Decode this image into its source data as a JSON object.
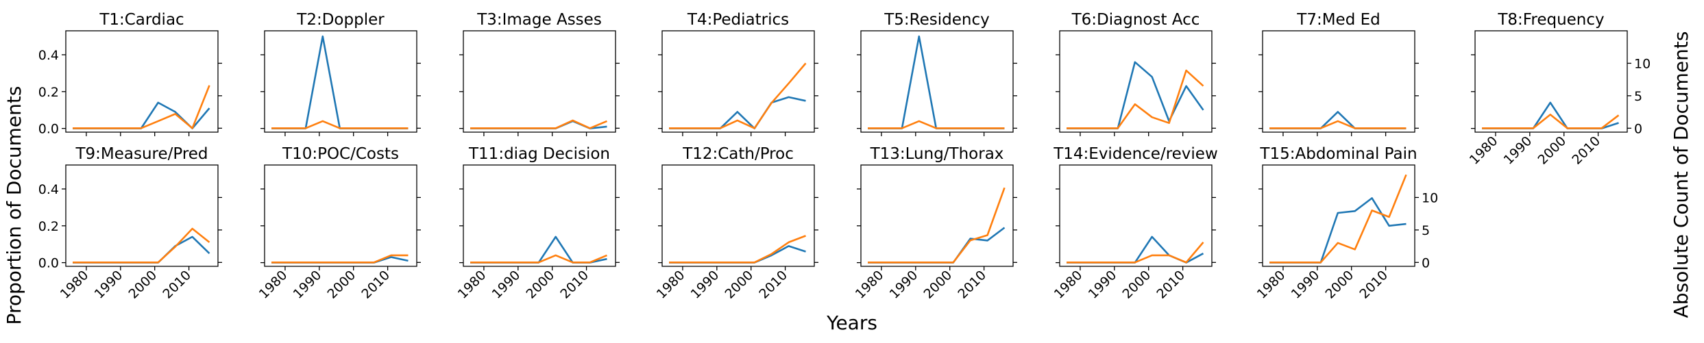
{
  "figure": {
    "ylabel_left": "Proportion of Documents",
    "ylabel_right": "Absolute Count of Documents",
    "xlabel": "Years"
  },
  "colors": {
    "proportion": "#1f77b4",
    "count": "#ff7f0e"
  },
  "chart_data": [
    {
      "type": "line",
      "title": "T1:Cardiac",
      "x": [
        1976,
        1981,
        1986,
        1991,
        1996,
        2001,
        2006,
        2011,
        2016
      ],
      "series": [
        {
          "values": [
            0,
            0,
            0,
            0,
            0,
            0.14,
            0.09,
            0,
            0.11
          ]
        },
        {
          "values": [
            0,
            0,
            0,
            0,
            0,
            1.1,
            2.2,
            0,
            6.6
          ]
        }
      ],
      "ylim": [
        -0.02,
        0.53
      ],
      "y2lim": [
        -0.6,
        15
      ]
    },
    {
      "type": "line",
      "title": "T2:Doppler",
      "x": [
        1976,
        1981,
        1986,
        1991,
        1996,
        2001,
        2006,
        2011,
        2016
      ],
      "series": [
        {
          "values": [
            0,
            0,
            0,
            0.5,
            0,
            0,
            0,
            0,
            0
          ]
        },
        {
          "values": [
            0,
            0,
            0,
            1.1,
            0,
            0,
            0,
            0,
            0
          ]
        }
      ],
      "ylim": [
        -0.02,
        0.53
      ],
      "y2lim": [
        -0.6,
        15
      ]
    },
    {
      "type": "line",
      "title": "T3:Image Asses",
      "x": [
        1976,
        1981,
        1986,
        1991,
        1996,
        2001,
        2006,
        2011,
        2016
      ],
      "series": [
        {
          "values": [
            0,
            0,
            0,
            0,
            0,
            0,
            0.04,
            0,
            0.01
          ]
        },
        {
          "values": [
            0,
            0,
            0,
            0,
            0,
            0,
            1.2,
            0,
            1.1
          ]
        }
      ],
      "ylim": [
        -0.02,
        0.53
      ],
      "y2lim": [
        -0.6,
        15
      ]
    },
    {
      "type": "line",
      "title": "T4:Pediatrics",
      "x": [
        1976,
        1981,
        1986,
        1991,
        1996,
        2001,
        2006,
        2011,
        2016
      ],
      "series": [
        {
          "values": [
            0,
            0,
            0,
            0,
            0.09,
            0,
            0.14,
            0.17,
            0.15
          ]
        },
        {
          "values": [
            0,
            0,
            0,
            0,
            1.2,
            0,
            3.9,
            6.9,
            10
          ]
        }
      ],
      "ylim": [
        -0.02,
        0.53
      ],
      "y2lim": [
        -0.6,
        15
      ]
    },
    {
      "type": "line",
      "title": "T5:Residency",
      "x": [
        1976,
        1981,
        1986,
        1991,
        1996,
        2001,
        2006,
        2011,
        2016
      ],
      "series": [
        {
          "values": [
            0,
            0,
            0,
            0.5,
            0,
            0,
            0,
            0,
            0
          ]
        },
        {
          "values": [
            0,
            0,
            0,
            1.1,
            0,
            0,
            0,
            0,
            0
          ]
        }
      ],
      "ylim": [
        -0.02,
        0.53
      ],
      "y2lim": [
        -0.6,
        15
      ]
    },
    {
      "type": "line",
      "title": "T6:Diagnost Acc",
      "x": [
        1976,
        1981,
        1986,
        1991,
        1996,
        2001,
        2006,
        2011,
        2016
      ],
      "series": [
        {
          "values": [
            0,
            0,
            0,
            0,
            0.36,
            0.28,
            0.04,
            0.23,
            0.1
          ]
        },
        {
          "values": [
            0,
            0,
            0,
            0,
            3.7,
            1.7,
            0.8,
            8.9,
            6.5
          ]
        }
      ],
      "ylim": [
        -0.02,
        0.53
      ],
      "y2lim": [
        -0.6,
        15
      ]
    },
    {
      "type": "line",
      "title": "T7:Med Ed",
      "x": [
        1976,
        1981,
        1986,
        1991,
        1996,
        2001,
        2006,
        2011,
        2016
      ],
      "series": [
        {
          "values": [
            0,
            0,
            0,
            0,
            0.09,
            0,
            0,
            0,
            0
          ]
        },
        {
          "values": [
            0,
            0,
            0,
            0,
            1.1,
            0,
            0,
            0,
            0
          ]
        }
      ],
      "ylim": [
        -0.02,
        0.53
      ],
      "y2lim": [
        -0.6,
        15
      ]
    },
    {
      "type": "line",
      "title": "T8:Frequency",
      "x": [
        1976,
        1981,
        1986,
        1991,
        1996,
        2001,
        2006,
        2011,
        2016
      ],
      "series": [
        {
          "values": [
            0,
            0,
            0,
            0,
            0.14,
            0,
            0,
            0,
            0.03
          ]
        },
        {
          "values": [
            0,
            0,
            0,
            0,
            2.1,
            0,
            0,
            0,
            2
          ]
        }
      ],
      "ylim": [
        -0.02,
        0.53
      ],
      "y2lim": [
        -0.6,
        15
      ],
      "y2ticks": [
        0,
        5,
        10
      ]
    },
    {
      "type": "line",
      "title": "T9:Measure/Pred",
      "x": [
        1976,
        1981,
        1986,
        1991,
        1996,
        2001,
        2006,
        2011,
        2016
      ],
      "series": [
        {
          "values": [
            0,
            0,
            0,
            0,
            0,
            0,
            0.09,
            0.14,
            0.05
          ]
        },
        {
          "values": [
            0,
            0,
            0,
            0,
            0,
            0,
            2.4,
            5.2,
            3.1
          ]
        }
      ],
      "ylim": [
        -0.02,
        0.53
      ],
      "y2lim": [
        -0.6,
        15
      ]
    },
    {
      "type": "line",
      "title": "T10:POC/Costs",
      "x": [
        1976,
        1981,
        1986,
        1991,
        1996,
        2001,
        2006,
        2011,
        2016
      ],
      "series": [
        {
          "values": [
            0,
            0,
            0,
            0,
            0,
            0,
            0,
            0.03,
            0.01
          ]
        },
        {
          "values": [
            0,
            0,
            0,
            0,
            0,
            0,
            0,
            1.1,
            1.1
          ]
        }
      ],
      "ylim": [
        -0.02,
        0.53
      ],
      "y2lim": [
        -0.6,
        15
      ]
    },
    {
      "type": "line",
      "title": "T11:diag Decision",
      "x": [
        1976,
        1981,
        1986,
        1991,
        1996,
        2001,
        2006,
        2011,
        2016
      ],
      "series": [
        {
          "values": [
            0,
            0,
            0,
            0,
            0,
            0.14,
            0,
            0,
            0.02
          ]
        },
        {
          "values": [
            0,
            0,
            0,
            0,
            0,
            1.1,
            0,
            0,
            1.1
          ]
        }
      ],
      "ylim": [
        -0.02,
        0.53
      ],
      "y2lim": [
        -0.6,
        15
      ]
    },
    {
      "type": "line",
      "title": "T12:Cath/Proc",
      "x": [
        1976,
        1981,
        1986,
        1991,
        1996,
        2001,
        2006,
        2011,
        2016
      ],
      "series": [
        {
          "values": [
            0,
            0,
            0,
            0,
            0,
            0,
            0.04,
            0.09,
            0.06
          ]
        },
        {
          "values": [
            0,
            0,
            0,
            0,
            0,
            0,
            1.3,
            3.1,
            4.1
          ]
        }
      ],
      "ylim": [
        -0.02,
        0.53
      ],
      "y2lim": [
        -0.6,
        15
      ]
    },
    {
      "type": "line",
      "title": "T13:Lung/Thorax",
      "x": [
        1976,
        1981,
        1986,
        1991,
        1996,
        2001,
        2006,
        2011,
        2016
      ],
      "series": [
        {
          "values": [
            0,
            0,
            0,
            0,
            0,
            0,
            0.13,
            0.12,
            0.19
          ]
        },
        {
          "values": [
            0,
            0,
            0,
            0,
            0,
            0,
            3.4,
            4.2,
            11.5
          ]
        }
      ],
      "ylim": [
        -0.02,
        0.53
      ],
      "y2lim": [
        -0.6,
        15
      ]
    },
    {
      "type": "line",
      "title": "T14:Evidence/review",
      "x": [
        1976,
        1981,
        1986,
        1991,
        1996,
        2001,
        2006,
        2011,
        2016
      ],
      "series": [
        {
          "values": [
            0,
            0,
            0,
            0,
            0,
            0.14,
            0.04,
            0,
            0.05
          ]
        },
        {
          "values": [
            0,
            0,
            0,
            0,
            0,
            1.1,
            1.1,
            0,
            3.1
          ]
        }
      ],
      "ylim": [
        -0.02,
        0.53
      ],
      "y2lim": [
        -0.6,
        15
      ]
    },
    {
      "type": "line",
      "title": "T15:Abdominal Pain",
      "x": [
        1976,
        1981,
        1986,
        1991,
        1996,
        2001,
        2006,
        2011,
        2016
      ],
      "series": [
        {
          "values": [
            0,
            0,
            0,
            0,
            0.27,
            0.28,
            0.35,
            0.2,
            0.21
          ]
        },
        {
          "values": [
            0,
            0,
            0,
            0,
            3,
            2,
            8,
            7,
            13.5
          ]
        }
      ],
      "ylim": [
        -0.02,
        0.53
      ],
      "y2lim": [
        -0.6,
        15
      ],
      "y2ticks": [
        0,
        5,
        10
      ]
    }
  ],
  "axes": {
    "xticks": [
      1980,
      1990,
      2000,
      2010
    ],
    "yticks": [
      0.0,
      0.2,
      0.4
    ],
    "ytick_labels": [
      "0.0",
      "0.2",
      "0.4"
    ],
    "xlim": [
      1974,
      2018.5
    ]
  }
}
